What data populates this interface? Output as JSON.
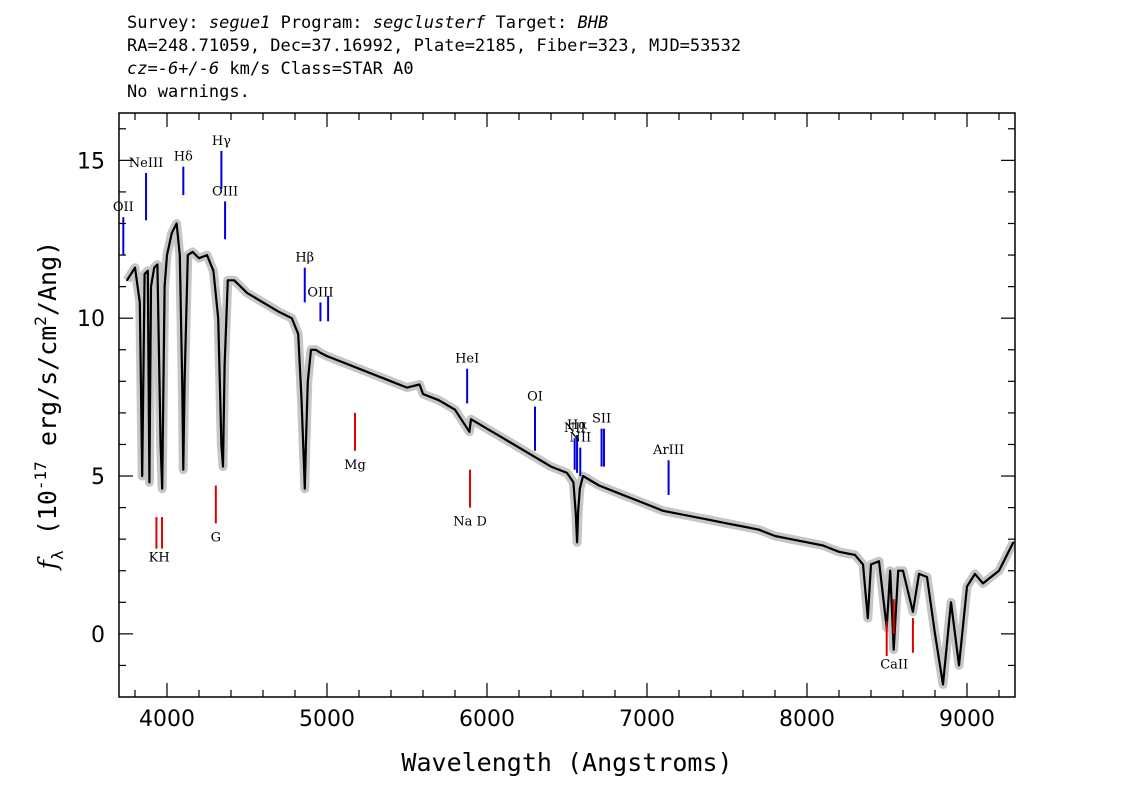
{
  "header": {
    "survey_label": "Survey:",
    "survey": "segue1",
    "program_label": "Program:",
    "program": "segclusterf",
    "target_label": "Target:",
    "target": "BHB",
    "line2": "RA=248.71059, Dec=37.16992, Plate=2185, Fiber=323, MJD=53532",
    "cz_label": "cz=",
    "cz_value": "-6+/-6",
    "cz_unit": " km/s Class=STAR A0",
    "warnings": "No warnings."
  },
  "chart_data": {
    "type": "line",
    "xlabel": "Wavelength (Angstroms)",
    "ylabel": "f_λ (10^-17 erg/s/cm^2/Ang)",
    "xlim": [
      3700,
      9300
    ],
    "ylim": [
      -2,
      16.5
    ],
    "xticks": [
      4000,
      5000,
      6000,
      7000,
      8000,
      9000
    ],
    "yticks": [
      0,
      5,
      10,
      15
    ],
    "colors": {
      "spectrum": "#000000",
      "error": "#b8b8b8",
      "emission": "#0000dd",
      "absorption": "#dd0000"
    },
    "series": [
      {
        "x": [
          3750,
          3800,
          3830,
          3845,
          3860,
          3880,
          3890,
          3900,
          3920,
          3940,
          3960,
          3970,
          3985,
          4000,
          4030,
          4060,
          4080,
          4095,
          4102,
          4110,
          4130,
          4160,
          4200,
          4250,
          4290,
          4320,
          4340,
          4350,
          4360,
          4380,
          4420,
          4500,
          4600,
          4700,
          4780,
          4820,
          4840,
          4855,
          4861,
          4868,
          4880,
          4900,
          4930,
          4960,
          5000,
          5100,
          5200,
          5300,
          5400,
          5500,
          5578,
          5600,
          5700,
          5800,
          5890,
          5900,
          6000,
          6100,
          6200,
          6300,
          6400,
          6500,
          6540,
          6555,
          6563,
          6570,
          6580,
          6600,
          6700,
          6800,
          6900,
          7000,
          7100,
          7200,
          7300,
          7400,
          7500,
          7600,
          7700,
          7800,
          7900,
          8000,
          8100,
          8200,
          8300,
          8350,
          8380,
          8400,
          8450,
          8498,
          8520,
          8542,
          8570,
          8600,
          8662,
          8700,
          8750,
          8800,
          8850,
          8900,
          8950,
          9000,
          9050,
          9100,
          9150,
          9200,
          9250,
          9290
        ],
        "y": [
          11.2,
          11.6,
          10.5,
          5.0,
          11.4,
          11.5,
          4.8,
          11.0,
          11.6,
          11.7,
          6.0,
          4.6,
          11.0,
          12.0,
          12.7,
          13.0,
          12.0,
          8.0,
          5.2,
          8.0,
          12.0,
          12.1,
          11.9,
          12.0,
          11.5,
          10.0,
          6.0,
          5.3,
          8.5,
          11.2,
          11.2,
          10.8,
          10.5,
          10.2,
          10.0,
          9.5,
          7.5,
          5.5,
          4.6,
          6.0,
          8.0,
          9.0,
          9.0,
          8.9,
          8.8,
          8.6,
          8.4,
          8.2,
          8.0,
          7.8,
          7.9,
          7.6,
          7.4,
          7.1,
          6.4,
          6.8,
          6.5,
          6.2,
          5.9,
          5.6,
          5.3,
          5.1,
          4.8,
          3.8,
          2.9,
          3.9,
          4.6,
          5.0,
          4.7,
          4.5,
          4.3,
          4.1,
          3.9,
          3.8,
          3.7,
          3.6,
          3.5,
          3.4,
          3.3,
          3.1,
          3.0,
          2.9,
          2.8,
          2.6,
          2.5,
          2.2,
          0.5,
          2.2,
          2.3,
          0.2,
          2.0,
          -0.5,
          2.0,
          2.0,
          0.7,
          1.9,
          1.8,
          0.0,
          -1.6,
          1.0,
          -1.0,
          1.5,
          1.9,
          1.6,
          1.8,
          2.0,
          2.5,
          2.9
        ]
      }
    ],
    "line_markers": [
      {
        "label": "OII",
        "wavelength": 3727,
        "kind": "emission",
        "y_top": 13.2,
        "y_bot": 12.0
      },
      {
        "label": "NeIII",
        "wavelength": 3869,
        "kind": "emission",
        "y_top": 14.6,
        "y_bot": 13.1
      },
      {
        "label": "Hδ",
        "wavelength": 4102,
        "kind": "emission",
        "y_top": 14.8,
        "y_bot": 13.9
      },
      {
        "label": "Hγ",
        "wavelength": 4340,
        "kind": "emission",
        "y_top": 15.3,
        "y_bot": 14.1
      },
      {
        "label": "OIII",
        "wavelength": 4363,
        "kind": "emission",
        "y_top": 13.7,
        "y_bot": 12.5
      },
      {
        "label": "Hβ",
        "wavelength": 4861,
        "kind": "emission",
        "y_top": 11.6,
        "y_bot": 10.5
      },
      {
        "label": "OIII",
        "wavelength": 4959,
        "kind": "emission",
        "y_top": 10.5,
        "y_bot": 9.9
      },
      {
        "label": "",
        "wavelength": 5007,
        "kind": "emission",
        "y_top": 10.7,
        "y_bot": 9.9
      },
      {
        "label": "HeI",
        "wavelength": 5876,
        "kind": "emission",
        "y_top": 8.4,
        "y_bot": 7.3
      },
      {
        "label": "OI",
        "wavelength": 6300,
        "kind": "emission",
        "y_top": 7.2,
        "y_bot": 5.8
      },
      {
        "label": "NII",
        "wavelength": 6548,
        "kind": "emission",
        "y_top": 6.2,
        "y_bot": 5.2
      },
      {
        "label": "Hα",
        "wavelength": 6563,
        "kind": "emission",
        "y_top": 6.3,
        "y_bot": 5.1
      },
      {
        "label": "NII",
        "wavelength": 6583,
        "kind": "emission",
        "y_top": 5.9,
        "y_bot": 5.0
      },
      {
        "label": "SII",
        "wavelength": 6716,
        "kind": "emission",
        "y_top": 6.5,
        "y_bot": 5.3
      },
      {
        "label": "",
        "wavelength": 6731,
        "kind": "emission",
        "y_top": 6.5,
        "y_bot": 5.3
      },
      {
        "label": "ArIII",
        "wavelength": 7135,
        "kind": "emission",
        "y_top": 5.5,
        "y_bot": 4.4
      },
      {
        "label": "",
        "wavelength": 3934,
        "kind": "absorption",
        "y_top": 3.7,
        "y_bot": 2.7
      },
      {
        "label": "",
        "wavelength": 3969,
        "kind": "absorption",
        "y_top": 3.7,
        "y_bot": 2.7
      },
      {
        "label": "G",
        "wavelength": 4305,
        "kind": "absorption",
        "y_top": 4.7,
        "y_bot": 3.5
      },
      {
        "label": "Mg",
        "wavelength": 5175,
        "kind": "absorption",
        "y_top": 7.0,
        "y_bot": 5.8
      },
      {
        "label": "Na D",
        "wavelength": 5894,
        "kind": "absorption",
        "y_top": 5.2,
        "y_bot": 4.0
      },
      {
        "label": "",
        "wavelength": 8498,
        "kind": "absorption",
        "y_top": 0.4,
        "y_bot": -0.7
      },
      {
        "label": "",
        "wavelength": 8542,
        "kind": "absorption",
        "y_top": 1.1,
        "y_bot": 0.0
      },
      {
        "label": "",
        "wavelength": 8662,
        "kind": "absorption",
        "y_top": 0.5,
        "y_bot": -0.6
      }
    ],
    "extra_labels": [
      {
        "label": "KH",
        "wavelength": 3951,
        "y": 2.3
      },
      {
        "label": "CaII",
        "wavelength": 8545,
        "y": -1.1
      }
    ]
  }
}
